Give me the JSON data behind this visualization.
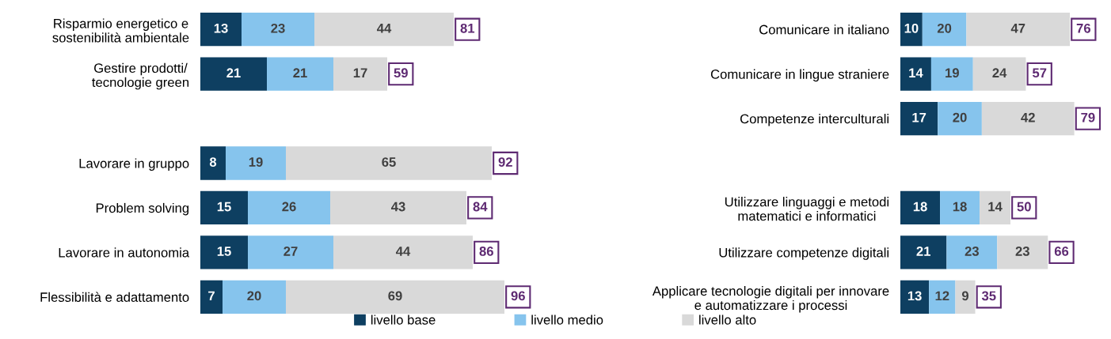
{
  "chart_data": [
    {
      "type": "bar",
      "orientation": "horizontal",
      "stacked": true,
      "data_labels": true,
      "tick_labels": "y",
      "legend": "bottom",
      "grid": false,
      "categories": [
        "Risparmio energetico e\nsostenibilità ambientale",
        "Gestire prodotti/\ntecnologie green",
        null,
        "Lavorare in gruppo",
        "Problem solving",
        "Lavorare in autonomia",
        "Flessibilità e adattamento"
      ],
      "series": [
        {
          "name": "livello base",
          "color": "#0e3f61",
          "values": [
            13,
            21,
            null,
            8,
            15,
            15,
            7
          ]
        },
        {
          "name": "livello medio",
          "color": "#86c4ed",
          "values": [
            23,
            21,
            null,
            19,
            26,
            27,
            20
          ]
        },
        {
          "name": "livello alto",
          "color": "#d9d9d9",
          "values": [
            44,
            17,
            null,
            65,
            43,
            44,
            69
          ]
        }
      ],
      "totals": [
        "81",
        "59",
        null,
        "92",
        "84",
        "86",
        "96"
      ]
    },
    {
      "type": "bar",
      "orientation": "horizontal",
      "stacked": true,
      "data_labels": true,
      "tick_labels": "y",
      "grid": false,
      "categories": [
        "Comunicare in italiano",
        "Comunicare in lingue straniere",
        "Competenze interculturali",
        null,
        "Utilizzare linguaggi e metodi\nmatematici e informatici",
        "Utilizzare competenze digitali",
        "Applicare tecnologie digitali per innovare\ne automatizzare i processi"
      ],
      "series": [
        {
          "color": "#0e3f61",
          "values": [
            10,
            14,
            17,
            null,
            18,
            21,
            13
          ]
        },
        {
          "color": "#86c4ed",
          "values": [
            20,
            19,
            20,
            null,
            18,
            23,
            12
          ]
        },
        {
          "color": "#d9d9d9",
          "values": [
            47,
            24,
            42,
            null,
            14,
            23,
            9
          ]
        }
      ],
      "totals": [
        "76",
        "57",
        "79",
        null,
        "50",
        "66",
        "35"
      ]
    }
  ]
}
